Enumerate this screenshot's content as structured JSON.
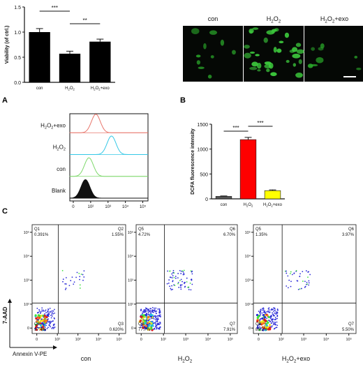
{
  "panel_letters": {
    "a": "A",
    "b": "B",
    "c": "C"
  },
  "chart_data": [
    {
      "type": "bar",
      "ylabel": "Viability (of ctrl.)",
      "ylim": [
        0,
        1.5
      ],
      "yticks": [
        "0.0",
        "0.5",
        "1.0",
        "1.5"
      ],
      "categories": [
        "con",
        "H2O2",
        "H2O2+exo"
      ],
      "category_labels": [
        {
          "main": "con",
          "sub": "",
          "tail": ""
        },
        {
          "main": "H",
          "sub": "2",
          "tail": "O",
          "sub2": "2",
          "tail2": ""
        },
        {
          "main": "H",
          "sub": "2",
          "tail": "O",
          "sub2": "2",
          "tail2": "+exo"
        }
      ],
      "values": [
        1.0,
        0.57,
        0.81
      ],
      "errors": [
        0.07,
        0.05,
        0.05
      ],
      "bar_color": "#000000",
      "significance": [
        {
          "from": 0,
          "to": 1,
          "label": "***"
        },
        {
          "from": 1,
          "to": 2,
          "label": "**"
        }
      ]
    },
    {
      "type": "histogram",
      "xlabel": "",
      "xticks": [
        "0",
        "10²",
        "10³",
        "10⁴",
        "10⁵"
      ],
      "series": [
        {
          "name": "H2O2+exo",
          "label_main": "H",
          "label_sub": "2",
          "label_mid": "O",
          "label_sub2": "2",
          "label_tail": "+exo",
          "color": "#e8746a",
          "peak_decade": 2.3
        },
        {
          "name": "H2O2",
          "label_main": "H",
          "label_sub": "2",
          "label_mid": "O",
          "label_sub2": "2",
          "label_tail": "",
          "color": "#35c8e6",
          "peak_decade": 3.2
        },
        {
          "name": "con",
          "label_main": "con",
          "label_sub": "",
          "label_mid": "",
          "label_sub2": "",
          "label_tail": "",
          "color": "#7dd86a",
          "peak_decade": 1.9
        },
        {
          "name": "Blank",
          "label_main": "Blank",
          "label_sub": "",
          "label_mid": "",
          "label_sub2": "",
          "label_tail": "",
          "color": "#111111",
          "peak_decade": 1.7
        }
      ]
    },
    {
      "type": "bar",
      "ylabel": "DCFA fluorescence intensity",
      "ylim": [
        0,
        1500
      ],
      "yticks": [
        "0",
        "500",
        "1000",
        "1500"
      ],
      "categories": [
        "con",
        "H2O2",
        "H2O2+exo"
      ],
      "values": [
        50,
        1190,
        165
      ],
      "errors": [
        8,
        45,
        15
      ],
      "colors": [
        "#555555",
        "#ff0000",
        "#ffff00"
      ],
      "significance": [
        {
          "from": 0,
          "to": 1,
          "label": "***"
        },
        {
          "from": 1,
          "to": 2,
          "label": "***"
        }
      ]
    },
    {
      "type": "scatter",
      "xlabel": "Annexin V-PE",
      "ylabel": "7-AAD",
      "plots": [
        {
          "name": "con",
          "quadrants": {
            "Q1": "0.391%",
            "Q2": "1.55%",
            "Q3": "0.620%",
            "Q4": "97.4%"
          },
          "q_names": [
            "Q1",
            "Q2",
            "Q3",
            "Q4"
          ]
        },
        {
          "name": "H2O2",
          "quadrants": {
            "Q1": "4.72%",
            "Q2": "6.70%",
            "Q3": "7.91%",
            "Q4": "77.7%"
          },
          "q_names": [
            "Q5",
            "Q6",
            "Q7",
            "Q8"
          ]
        },
        {
          "name": "H2O2+exo",
          "quadrants": {
            "Q1": "1.35%",
            "Q2": "3.97%",
            "Q3": "5.50%",
            "Q4": "89.2%"
          },
          "q_names": [
            "Q5",
            "Q6",
            "Q7",
            "Q8"
          ]
        }
      ],
      "xticks": [
        "0",
        "10²",
        "10³",
        "10⁴",
        "10⁵"
      ],
      "yticks": [
        "0",
        "10²",
        "10³",
        "10⁴",
        "10⁵"
      ]
    }
  ],
  "micrographs": {
    "labels": [
      {
        "main": "con",
        "sub": "",
        "mid": "",
        "sub2": "",
        "tail": ""
      },
      {
        "main": "H",
        "sub": "2",
        "mid": "O",
        "sub2": "2",
        "tail": ""
      },
      {
        "main": "H",
        "sub": "2",
        "mid": "O",
        "sub2": "2",
        "tail": "+exo"
      }
    ]
  },
  "colors": {
    "background": "#ffffff",
    "ink": "#111111"
  }
}
